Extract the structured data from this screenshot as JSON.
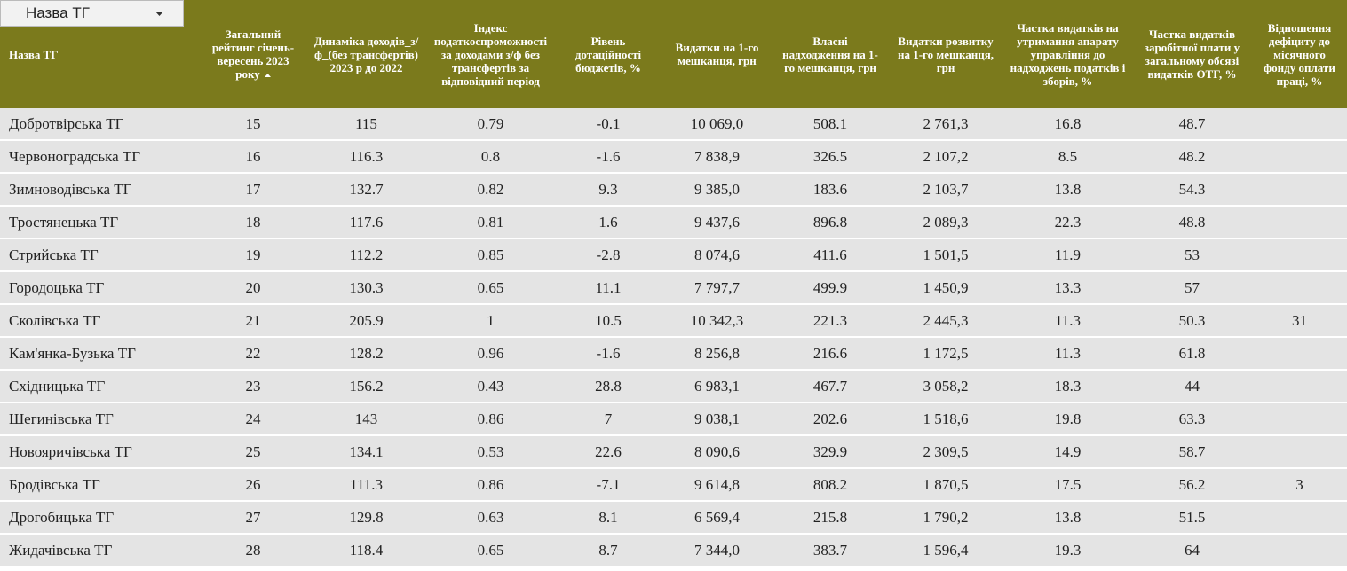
{
  "dropdown": {
    "label": "Назва ТГ"
  },
  "table": {
    "columns": [
      "Назва ТГ",
      "Загальний рейтинг січень-вересень 2023 року",
      "Динаміка доходів_з/ф_(без трансфертів) 2023 р до 2022",
      "Індекс податкоспроможності за доходами з/ф без трансфертів за відповідний період",
      "Рівень дотаційності бюджетів, %",
      "Видатки на 1-го мешканця, грн",
      "Власні надходження на 1-го мешканця, грн",
      "Видатки розвитку на 1-го мешканця, грн",
      "Частка видатків на утримання апарату управління до надходжень податків і зборів, %",
      "Частка видатків заробітної плати у загальному обсязі видатків ОТГ, %",
      "Відношення дефіциту до місячного фонду оплати праці, %"
    ],
    "rows": [
      [
        "Добротвірська ТГ",
        "15",
        "115",
        "0.79",
        "-0.1",
        "10 069,0",
        "508.1",
        "2 761,3",
        "16.8",
        "48.7",
        null
      ],
      [
        "Червоноградська ТГ",
        "16",
        "116.3",
        "0.8",
        "-1.6",
        "7 838,9",
        "326.5",
        "2 107,2",
        "8.5",
        "48.2",
        null
      ],
      [
        "Зимноводівська ТГ",
        "17",
        "132.7",
        "0.82",
        "9.3",
        "9 385,0",
        "183.6",
        "2 103,7",
        "13.8",
        "54.3",
        null
      ],
      [
        "Тростянецька ТГ",
        "18",
        "117.6",
        "0.81",
        "1.6",
        "9 437,6",
        "896.8",
        "2 089,3",
        "22.3",
        "48.8",
        null
      ],
      [
        "Стрийська ТГ",
        "19",
        "112.2",
        "0.85",
        "-2.8",
        "8 074,6",
        "411.6",
        "1 501,5",
        "11.9",
        "53",
        null
      ],
      [
        "Городоцька ТГ",
        "20",
        "130.3",
        "0.65",
        "11.1",
        "7 797,7",
        "499.9",
        "1 450,9",
        "13.3",
        "57",
        null
      ],
      [
        "Сколівська ТГ",
        "21",
        "205.9",
        "1",
        "10.5",
        "10 342,3",
        "221.3",
        "2 445,3",
        "11.3",
        "50.3",
        "31"
      ],
      [
        "Кам'янка-Бузька ТГ",
        "22",
        "128.2",
        "0.96",
        "-1.6",
        "8 256,8",
        "216.6",
        "1 172,5",
        "11.3",
        "61.8",
        null
      ],
      [
        "Східницька ТГ",
        "23",
        "156.2",
        "0.43",
        "28.8",
        "6 983,1",
        "467.7",
        "3 058,2",
        "18.3",
        "44",
        null
      ],
      [
        "Шегинівська ТГ",
        "24",
        "143",
        "0.86",
        "7",
        "9 038,1",
        "202.6",
        "1 518,6",
        "19.8",
        "63.3",
        null
      ],
      [
        "Новояричівська ТГ",
        "25",
        "134.1",
        "0.53",
        "22.6",
        "8 090,6",
        "329.9",
        "2 309,5",
        "14.9",
        "58.7",
        null
      ],
      [
        "Бродівська ТГ",
        "26",
        "111.3",
        "0.86",
        "-7.1",
        "9 614,8",
        "808.2",
        "1 870,5",
        "17.5",
        "56.2",
        "3"
      ],
      [
        "Дрогобицька ТГ",
        "27",
        "129.8",
        "0.63",
        "8.1",
        "6 569,4",
        "215.8",
        "1 790,2",
        "13.8",
        "51.5",
        null
      ],
      [
        "Жидачівська ТГ",
        "28",
        "118.4",
        "0.65",
        "8.7",
        "7 344,0",
        "383.7",
        "1 596,4",
        "19.3",
        "64",
        null
      ]
    ]
  }
}
